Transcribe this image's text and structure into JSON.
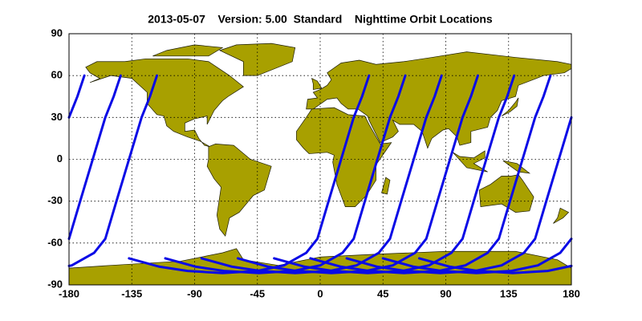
{
  "chart_data": {
    "type": "map-lines",
    "title": "2013-05-07    Version: 5.00  Standard    Nighttime Orbit Locations",
    "xlim": [
      -180,
      180
    ],
    "ylim": [
      -90,
      90
    ],
    "xticks": [
      -180,
      -135,
      -90,
      -45,
      0,
      45,
      90,
      135,
      180
    ],
    "yticks": [
      90,
      60,
      30,
      0,
      -30,
      -60,
      -90
    ],
    "grid": true,
    "series": [
      {
        "color": "#0a0ae6",
        "x": [
          35,
          30,
          24,
          15,
          6,
          -2,
          -10,
          -26,
          -45,
          -70,
          -95,
          -115,
          -137
        ],
        "y": [
          60,
          45,
          30,
          0,
          -30,
          -57,
          -67,
          -76,
          -80,
          -81.5,
          -80,
          -77,
          -71
        ]
      },
      {
        "color": "#0a0ae6",
        "x": [
          61,
          56,
          50,
          41,
          32,
          24,
          16,
          0,
          -19,
          -44,
          -69,
          -89,
          -111
        ],
        "y": [
          60,
          45,
          30,
          0,
          -30,
          -57,
          -67,
          -76,
          -80,
          -81.5,
          -80,
          -77,
          -71
        ]
      },
      {
        "color": "#0a0ae6",
        "x": [
          87,
          82,
          76,
          67,
          58,
          50,
          42,
          26,
          7,
          -18,
          -43,
          -63,
          -85
        ],
        "y": [
          60,
          45,
          30,
          0,
          -30,
          -57,
          -67,
          -76,
          -80,
          -81.5,
          -80,
          -77,
          -71
        ]
      },
      {
        "color": "#0a0ae6",
        "x": [
          113,
          108,
          102,
          93,
          84,
          76,
          68,
          52,
          33,
          8,
          -17,
          -37,
          -59
        ],
        "y": [
          60,
          45,
          30,
          0,
          -30,
          -57,
          -67,
          -76,
          -80,
          -81.5,
          -80,
          -77,
          -71
        ]
      },
      {
        "color": "#0a0ae6",
        "x": [
          139,
          134,
          128,
          119,
          110,
          102,
          94,
          78,
          59,
          34,
          9,
          -11,
          -33
        ],
        "y": [
          60,
          45,
          30,
          0,
          -30,
          -57,
          -67,
          -76,
          -80,
          -81.5,
          -80,
          -77,
          -71
        ]
      },
      {
        "color": "#0a0ae6",
        "x": [
          165,
          160,
          154,
          145,
          136,
          128,
          120,
          104,
          85,
          60,
          35,
          15,
          -7
        ],
        "y": [
          60,
          45,
          30,
          0,
          -30,
          -57,
          -67,
          -76,
          -80,
          -81.5,
          -80,
          -77,
          -71
        ]
      },
      {
        "color": "#0a0ae6",
        "x": [
          -169,
          -174,
          -180,
          null,
          180,
          171,
          162,
          154,
          146,
          130,
          111,
          86,
          61,
          41,
          19
        ],
        "y": [
          60,
          45,
          30,
          null,
          30,
          0,
          -30,
          -57,
          -67,
          -76,
          -80,
          -81.5,
          -80,
          -77,
          -71
        ]
      },
      {
        "color": "#0a0ae6",
        "x": [
          -143,
          -148,
          -154,
          -163,
          -172,
          -180,
          null,
          180,
          172,
          156,
          137,
          112,
          87,
          67,
          45
        ],
        "y": [
          60,
          45,
          30,
          0,
          -30,
          -57,
          null,
          -57,
          -67,
          -76,
          -80,
          -81.5,
          -80,
          -77,
          -71
        ]
      },
      {
        "color": "#0a0ae6",
        "x": [
          -117,
          -122,
          -128,
          -137,
          -146,
          -154,
          -162,
          -178,
          -180,
          null,
          180,
          163,
          138,
          113,
          93,
          71
        ],
        "y": [
          60,
          45,
          30,
          0,
          -30,
          -57,
          -67,
          -76,
          -76.4,
          null,
          -76.4,
          -80,
          -81.5,
          -80,
          -77,
          -71
        ]
      }
    ]
  }
}
